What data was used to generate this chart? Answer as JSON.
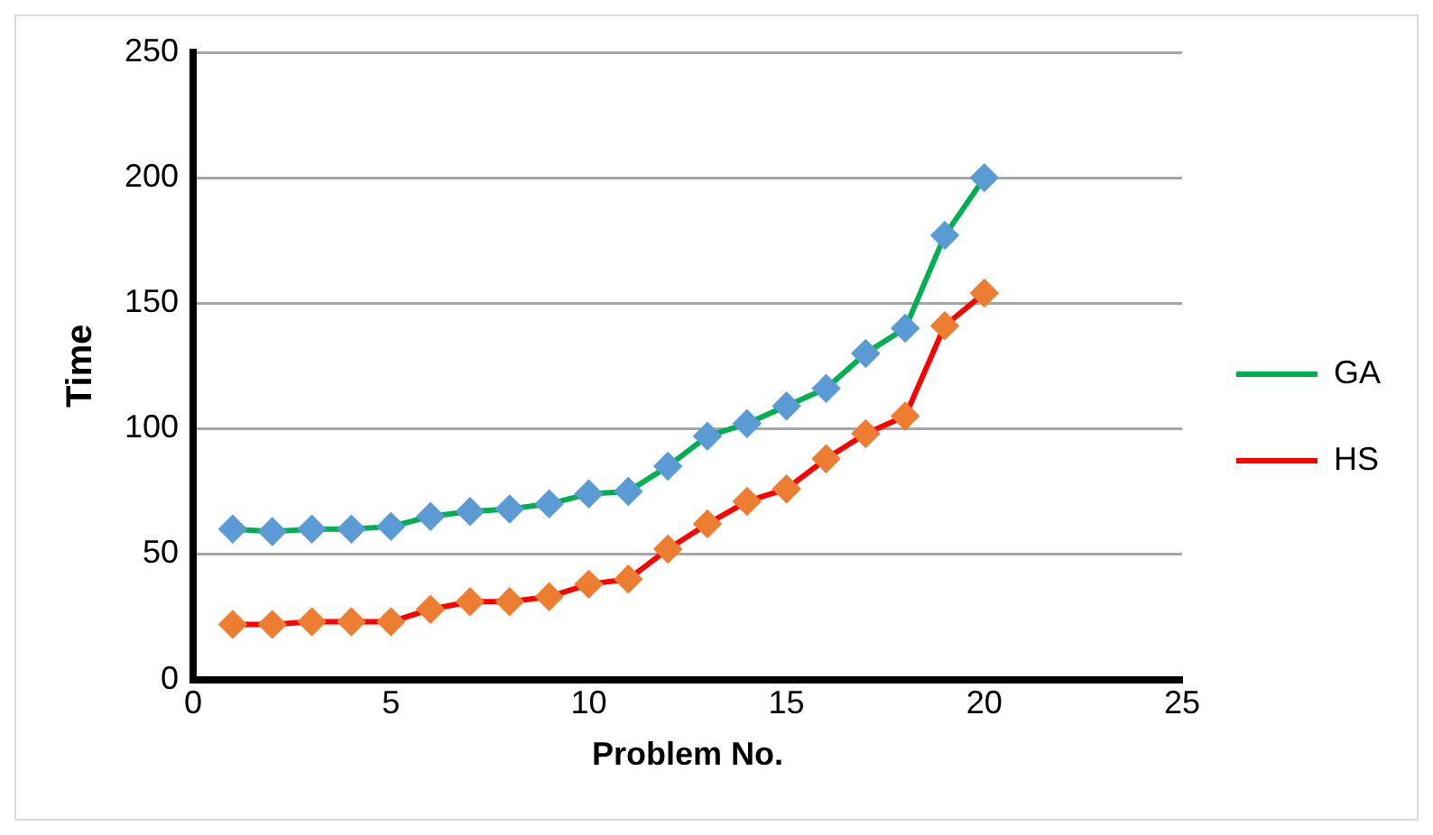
{
  "chart_data": {
    "type": "line",
    "xlabel": "Problem No.",
    "ylabel": "Time",
    "x": [
      1,
      2,
      3,
      4,
      5,
      6,
      7,
      8,
      9,
      10,
      11,
      12,
      13,
      14,
      15,
      16,
      17,
      18,
      19,
      20
    ],
    "xlim": [
      0,
      25
    ],
    "xticks": [
      0,
      5,
      10,
      15,
      20,
      25
    ],
    "ylim": [
      0,
      250
    ],
    "yticks": [
      0,
      50,
      100,
      150,
      200,
      250
    ],
    "grid": "y",
    "legend": "right",
    "marker": "diamond",
    "series": [
      {
        "name": "GA",
        "color": "#00b050",
        "colors": [
          "#5b9bd5",
          "#5b9bd5",
          "#5b9bd5",
          "#5b9bd5",
          "#5b9bd5",
          "#5b9bd5",
          "#5b9bd5",
          "#5b9bd5",
          "#5b9bd5",
          "#5b9bd5",
          "#5b9bd5",
          "#5b9bd5",
          "#5b9bd5",
          "#5b9bd5",
          "#5b9bd5",
          "#5b9bd5",
          "#5b9bd5",
          "#5b9bd5",
          "#5b9bd5",
          "#5b9bd5"
        ],
        "values": [
          60,
          59,
          60,
          60,
          61,
          65,
          67,
          68,
          70,
          74,
          75,
          85,
          97,
          102,
          109,
          116,
          130,
          140,
          177,
          200
        ]
      },
      {
        "name": "HS",
        "color": "#ff0000",
        "colors": [
          "#ed7d31",
          "#ed7d31",
          "#ed7d31",
          "#ed7d31",
          "#ed7d31",
          "#ed7d31",
          "#ed7d31",
          "#ed7d31",
          "#ed7d31",
          "#ed7d31",
          "#ed7d31",
          "#ed7d31",
          "#ed7d31",
          "#ed7d31",
          "#ed7d31",
          "#ed7d31",
          "#ed7d31",
          "#ed7d31",
          "#ed7d31",
          "#ed7d31"
        ],
        "values": [
          22,
          22,
          23,
          23,
          23,
          28,
          31,
          31,
          33,
          38,
          40,
          52,
          62,
          71,
          76,
          88,
          98,
          105,
          141,
          154
        ]
      }
    ]
  }
}
